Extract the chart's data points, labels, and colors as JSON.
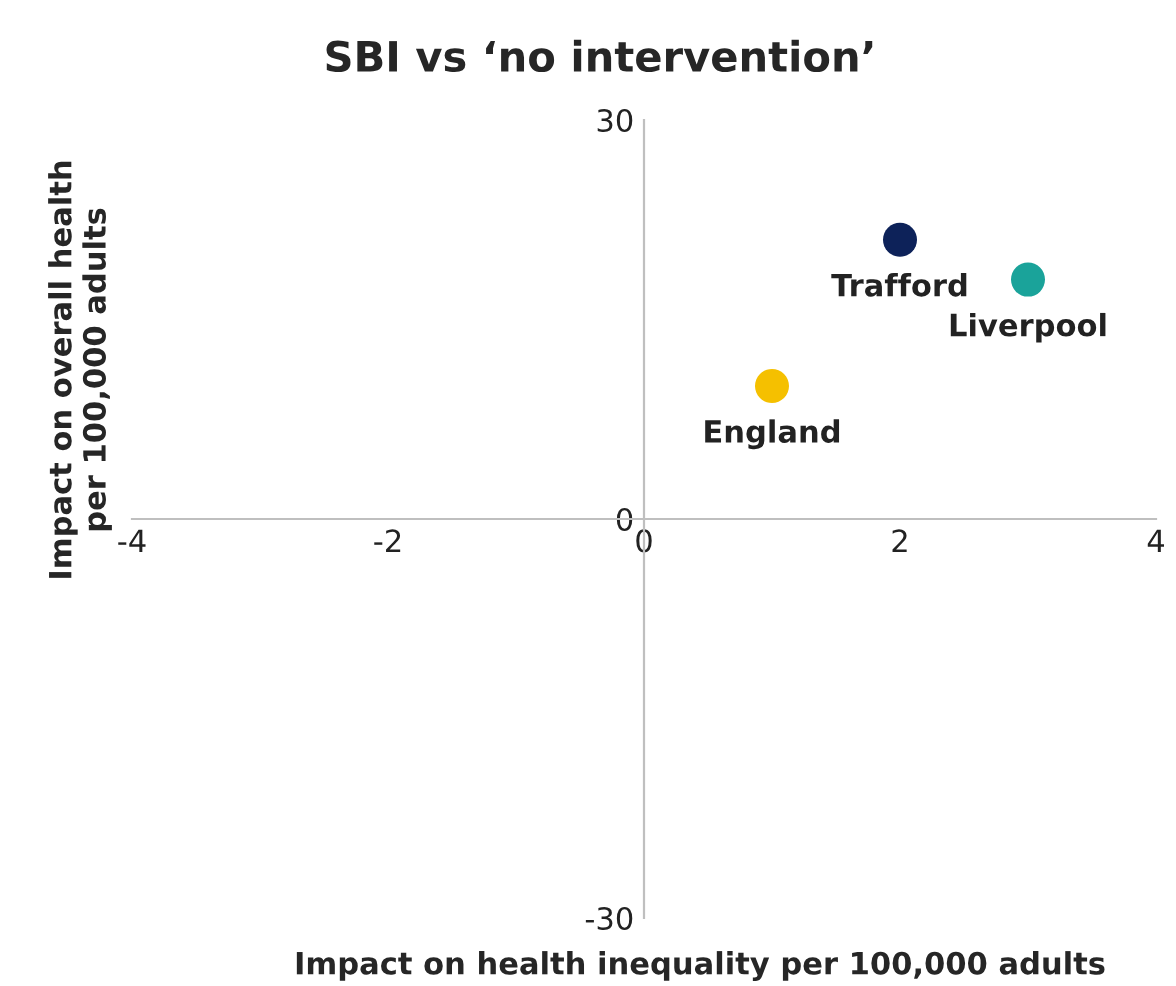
{
  "chart_data": {
    "type": "scatter",
    "title": "SBI vs ‘no intervention’",
    "xlabel": "Impact on health inequality per 100,000 adults",
    "ylabel": "Impact on overall health\nper 100,000 adults",
    "series": [
      {
        "name": "Trafford",
        "color": "#0d2259",
        "x": [
          2
        ],
        "values": [
          21
        ]
      },
      {
        "name": "Liverpool",
        "color": "#1aa39a",
        "x": [
          3
        ],
        "values": [
          18
        ]
      },
      {
        "name": "England",
        "color": "#f5c000",
        "x": [
          1
        ],
        "values": [
          10
        ]
      }
    ],
    "xlim": [
      -4,
      4
    ],
    "xticks": [
      -4,
      -2,
      0,
      2,
      4
    ],
    "ylim": [
      -30,
      30
    ],
    "yticks": [
      -30,
      0,
      30
    ],
    "marker": "circle",
    "grid": false,
    "legend": false
  }
}
